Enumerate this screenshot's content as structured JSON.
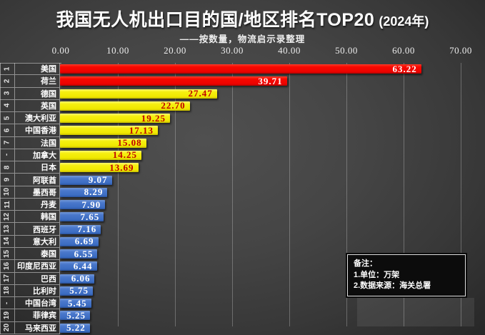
{
  "title": {
    "main": "我国无人机出口目的国/地区排名TOP20",
    "suffix": "(2024年)"
  },
  "subtitle": "——按数量，物流启示录整理",
  "axis": {
    "ticks": [
      "0.00",
      "10.00",
      "20.00",
      "30.00",
      "40.00",
      "50.00",
      "60.00",
      "70.00"
    ]
  },
  "note": {
    "lines": [
      "备注：",
      "1.单位：万架",
      "2.数据来源：海关总署"
    ]
  },
  "colors": {
    "red": "#ee0300",
    "yellow": "#f0e800",
    "blue": "#3b6cc2",
    "value_on_red": "#ffffff",
    "value_on_yellow": "#c00000",
    "value_on_blue": "#ffffff",
    "background": "#3f3f3f",
    "text": "#ffffff"
  },
  "chart_data": {
    "type": "bar",
    "orientation": "horizontal",
    "title": "我国无人机出口目的国/地区排名TOP20(2024年)",
    "subtitle": "——按数量，物流启示录整理",
    "unit": "万架",
    "source": "海关总署",
    "xlim": [
      0,
      70
    ],
    "x_ticks": [
      0,
      10,
      20,
      30,
      40,
      50,
      60,
      70
    ],
    "grid": true,
    "rows": [
      {
        "rank": "1",
        "name": "美国",
        "value": 63.22,
        "color": "red"
      },
      {
        "rank": "2",
        "name": "荷兰",
        "value": 39.71,
        "color": "red"
      },
      {
        "rank": "3",
        "name": "德国",
        "value": 27.47,
        "color": "yellow"
      },
      {
        "rank": "4",
        "name": "英国",
        "value": 22.7,
        "color": "yellow"
      },
      {
        "rank": "5",
        "name": "澳大利亚",
        "value": 19.25,
        "color": "yellow"
      },
      {
        "rank": "6",
        "name": "中国香港",
        "value": 17.13,
        "color": "yellow"
      },
      {
        "rank": "7",
        "name": "法国",
        "value": 15.08,
        "color": "yellow"
      },
      {
        "rank": "-",
        "name": "加拿大",
        "value": 14.25,
        "color": "yellow"
      },
      {
        "rank": "8",
        "name": "日本",
        "value": 13.69,
        "color": "yellow"
      },
      {
        "rank": "9",
        "name": "阿联酋",
        "value": 9.07,
        "color": "blue"
      },
      {
        "rank": "10",
        "name": "墨西哥",
        "value": 8.29,
        "color": "blue"
      },
      {
        "rank": "11",
        "name": "丹麦",
        "value": 7.9,
        "color": "blue"
      },
      {
        "rank": "12",
        "name": "韩国",
        "value": 7.65,
        "color": "blue"
      },
      {
        "rank": "13",
        "name": "西班牙",
        "value": 7.16,
        "color": "blue"
      },
      {
        "rank": "14",
        "name": "意大利",
        "value": 6.69,
        "color": "blue"
      },
      {
        "rank": "15",
        "name": "泰国",
        "value": 6.55,
        "color": "blue"
      },
      {
        "rank": "16",
        "name": "印度尼西亚",
        "value": 6.44,
        "color": "blue"
      },
      {
        "rank": "17",
        "name": "巴西",
        "value": 6.06,
        "color": "blue"
      },
      {
        "rank": "18",
        "name": "比利时",
        "value": 5.75,
        "color": "blue"
      },
      {
        "rank": "-",
        "name": "中国台湾",
        "value": 5.45,
        "color": "blue"
      },
      {
        "rank": "19",
        "name": "菲律宾",
        "value": 5.25,
        "color": "blue"
      },
      {
        "rank": "20",
        "name": "马来西亚",
        "value": 5.22,
        "color": "blue"
      }
    ]
  }
}
